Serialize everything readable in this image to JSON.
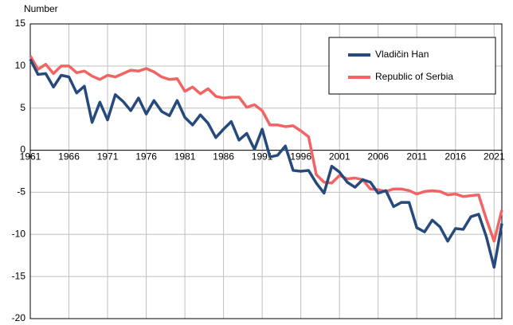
{
  "chart_data": {
    "type": "line",
    "y_label": "Number",
    "x": [
      1961,
      1962,
      1963,
      1964,
      1965,
      1966,
      1967,
      1968,
      1969,
      1970,
      1971,
      1972,
      1973,
      1974,
      1975,
      1976,
      1977,
      1978,
      1979,
      1980,
      1981,
      1982,
      1983,
      1984,
      1985,
      1986,
      1987,
      1988,
      1989,
      1990,
      1991,
      1992,
      1993,
      1994,
      1995,
      1996,
      1997,
      1998,
      1999,
      2000,
      2001,
      2002,
      2003,
      2004,
      2005,
      2006,
      2007,
      2008,
      2009,
      2010,
      2011,
      2012,
      2013,
      2014,
      2015,
      2016,
      2017,
      2018,
      2019,
      2020,
      2021,
      2022
    ],
    "series": [
      {
        "name": "Vladičin Han",
        "color": "#264a7c",
        "values": [
          10.8,
          9.0,
          9.1,
          7.5,
          8.9,
          8.7,
          6.8,
          7.6,
          3.3,
          5.7,
          3.6,
          6.6,
          5.8,
          4.7,
          6.2,
          4.3,
          5.9,
          4.6,
          4.1,
          5.9,
          3.9,
          3.0,
          4.2,
          3.2,
          1.5,
          2.5,
          3.4,
          1.2,
          2.0,
          0.1,
          2.5,
          -0.8,
          -0.6,
          0.5,
          -2.4,
          -2.5,
          -2.4,
          -3.9,
          -5.1,
          -1.9,
          -2.6,
          -3.8,
          -4.4,
          -3.5,
          -3.8,
          -5.1,
          -4.8,
          -6.7,
          -6.2,
          -6.2,
          -9.2,
          -9.7,
          -8.3,
          -9.1,
          -10.8,
          -9.3,
          -9.4,
          -7.9,
          -7.6,
          -10.3,
          -13.9,
          -8.7
        ]
      },
      {
        "name": "Republic of Serbia",
        "color": "#f26464",
        "values": [
          11.2,
          9.6,
          10.2,
          9.1,
          10.0,
          10.0,
          9.2,
          9.4,
          8.8,
          8.4,
          8.9,
          8.7,
          9.1,
          9.5,
          9.4,
          9.7,
          9.3,
          8.7,
          8.4,
          8.5,
          7.0,
          7.5,
          6.7,
          7.3,
          6.4,
          6.2,
          6.3,
          6.3,
          5.1,
          5.4,
          4.7,
          3.0,
          3.0,
          2.8,
          2.9,
          2.3,
          1.6,
          -2.9,
          -3.8,
          -3.9,
          -3.0,
          -3.4,
          -3.3,
          -3.5,
          -4.6,
          -4.7,
          -4.9,
          -4.6,
          -4.6,
          -4.8,
          -5.2,
          -4.9,
          -4.8,
          -4.9,
          -5.3,
          -5.2,
          -5.5,
          -5.4,
          -5.3,
          -8.2,
          -10.8,
          -7.1
        ]
      }
    ],
    "xlim": [
      1961,
      2022
    ],
    "xticks": [
      1961,
      1966,
      1971,
      1976,
      1981,
      1986,
      1991,
      1996,
      2001,
      2006,
      2011,
      2016,
      2021
    ],
    "ylim": [
      -20,
      15
    ],
    "yticks": [
      -20,
      -15,
      -10,
      -5,
      0,
      5,
      10,
      15
    ],
    "grid": true,
    "legend": "top-right"
  }
}
